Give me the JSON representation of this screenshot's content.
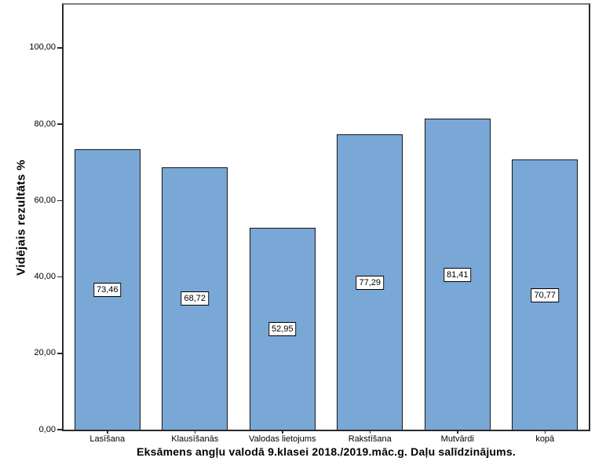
{
  "chart_data": {
    "type": "bar",
    "xlabel": "Eksāmens angļu valodā 9.klasei 2018./2019.māc.g. Daļu salīdzinājums.",
    "ylabel": "Vidējais rezultāts %",
    "categories": [
      "Lasīšana",
      "Klausīšanās",
      "Valodas lietojums",
      "Rakstīšana",
      "Mutvārdi",
      "kopā"
    ],
    "values": [
      73.46,
      68.72,
      52.95,
      77.29,
      81.41,
      70.77
    ],
    "value_labels": [
      "73,46",
      "68,72",
      "52,95",
      "77,29",
      "81,41",
      "70,77"
    ],
    "y_ticks": [
      {
        "value": 0,
        "label": "0,00"
      },
      {
        "value": 20,
        "label": "20,00"
      },
      {
        "value": 40,
        "label": "40,00"
      },
      {
        "value": 60,
        "label": "60,00"
      },
      {
        "value": 80,
        "label": "80,00"
      },
      {
        "value": 100,
        "label": "100,00"
      }
    ],
    "ylim": [
      0,
      111.3
    ],
    "grid": false,
    "legend": "none",
    "colors": {
      "bar_fill": "#79A8D6",
      "bar_border": "#161616",
      "frame_border": "#2b2b2b",
      "frame_border_top": "#7d7d7d",
      "label_box_bg": "#ffffff",
      "label_box_border": "#000000",
      "background": "#ffffff",
      "text": "#000000"
    }
  }
}
